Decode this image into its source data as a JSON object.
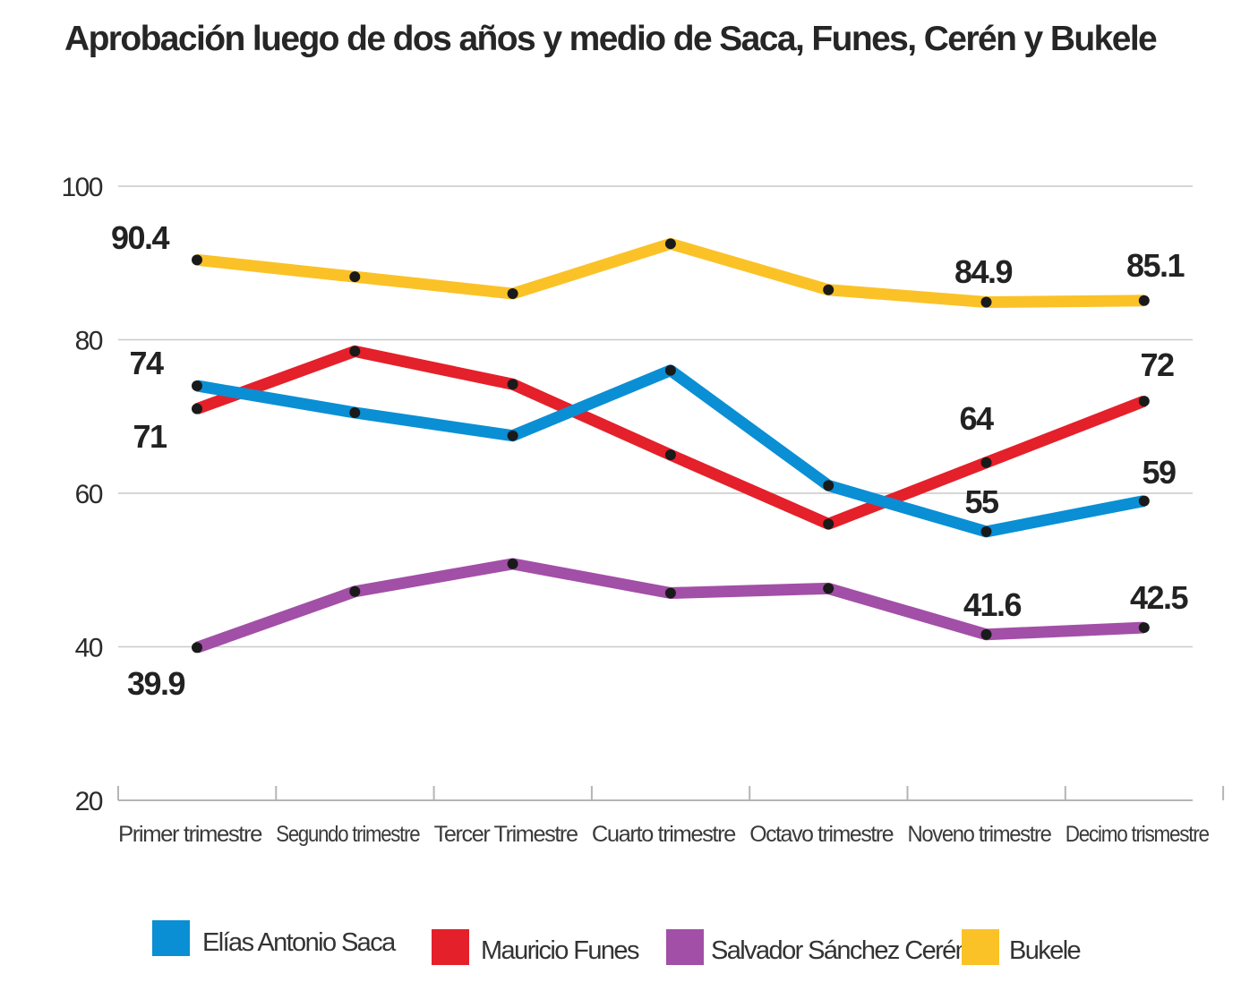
{
  "chart_data": {
    "type": "line",
    "title": "Aprobación luego de dos años y medio  de Saca, Funes, Cerén y Bukele",
    "xlabel": "",
    "ylabel": "",
    "ylim": [
      20,
      100
    ],
    "yticks": [
      "20",
      "40",
      "60",
      "80",
      "100"
    ],
    "grid": true,
    "legend_position": "bottom",
    "categories": [
      "Primer trimestre",
      "Segundo trimestre",
      "Tercer Trimestre",
      "Cuarto trimestre",
      "Octavo trimestre",
      "Noveno trimestre",
      "Decimo trismestre"
    ],
    "series": [
      {
        "name": "Elías Antonio Saca",
        "color": "#0a8fd4",
        "values": [
          74,
          70.5,
          67.5,
          76,
          61,
          55,
          59
        ],
        "labels": {
          "0": "74",
          "5": "55",
          "6": "59"
        }
      },
      {
        "name": "Mauricio Funes",
        "color": "#e4202a",
        "values": [
          71,
          78.5,
          74.2,
          65,
          56,
          64,
          72
        ],
        "labels": {
          "0": "71",
          "5": "64",
          "6": "72"
        }
      },
      {
        "name": "Salvador Sánchez Cerén",
        "color": "#a24fa7",
        "values": [
          39.9,
          47.2,
          50.8,
          47,
          47.6,
          41.6,
          42.5
        ],
        "labels": {
          "0": "39.9",
          "5": "41.6",
          "6": "42.5"
        }
      },
      {
        "name": "Bukele",
        "color": "#fbc227",
        "values": [
          90.4,
          88.2,
          86,
          92.5,
          86.5,
          84.9,
          85.1
        ],
        "labels": {
          "0": "90.4",
          "5": "84.9",
          "6": "85.1"
        }
      }
    ]
  }
}
